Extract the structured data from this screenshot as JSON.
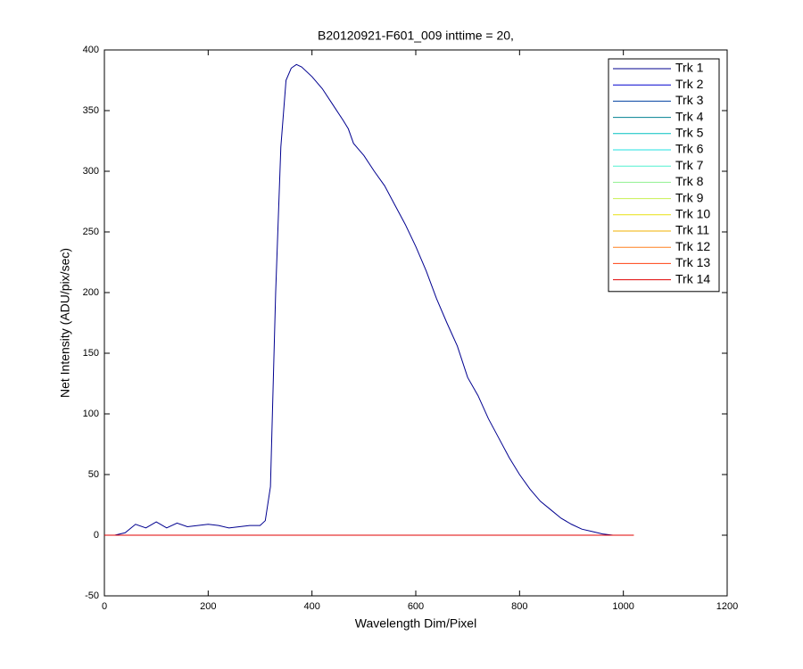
{
  "chart_data": {
    "type": "line",
    "title": "B20120921-F601_009 inttime = 20,",
    "xlabel": "Wavelength Dim/Pixel",
    "ylabel": "Net Intensity (ADU/pix/sec)",
    "xlim": [
      0,
      1200
    ],
    "xticks": [
      0,
      200,
      400,
      600,
      800,
      1000,
      1200
    ],
    "ylim": [
      -50,
      400
    ],
    "yticks": [
      -50,
      0,
      50,
      100,
      150,
      200,
      250,
      300,
      350,
      400
    ],
    "grid": false,
    "legend_position": "upper right",
    "x": [
      0,
      20,
      40,
      60,
      80,
      100,
      120,
      140,
      160,
      180,
      200,
      220,
      240,
      260,
      280,
      300,
      310,
      320,
      330,
      340,
      350,
      360,
      370,
      380,
      400,
      420,
      440,
      460,
      470,
      480,
      490,
      500,
      520,
      540,
      560,
      580,
      600,
      620,
      640,
      660,
      680,
      700,
      720,
      740,
      760,
      780,
      800,
      820,
      840,
      860,
      880,
      900,
      920,
      940,
      960,
      980,
      1000,
      1020
    ],
    "series": [
      {
        "name": "Trk 1",
        "color": "#00008f",
        "values": [
          0,
          0,
          2,
          9,
          6,
          11,
          6,
          10,
          7,
          8,
          9,
          8,
          6,
          7,
          8,
          8,
          12,
          40,
          200,
          320,
          375,
          385,
          388,
          386,
          378,
          368,
          355,
          342,
          335,
          323,
          318,
          313,
          300,
          288,
          272,
          256,
          238,
          218,
          195,
          175,
          156,
          130,
          115,
          96,
          80,
          64,
          50,
          38,
          28,
          21,
          14,
          9,
          5,
          3,
          1,
          0,
          0,
          null
        ]
      },
      {
        "name": "Trk 2",
        "color": "#0000cf",
        "values": [
          0,
          0,
          0,
          0,
          0,
          0,
          0,
          0,
          0,
          0,
          0,
          0,
          0,
          0,
          0,
          0,
          0,
          0,
          0,
          0,
          0,
          0,
          0,
          0,
          0,
          0,
          0,
          0,
          0,
          0,
          0,
          0,
          0,
          0,
          0,
          0,
          0,
          0,
          0,
          0,
          0,
          0,
          0,
          0,
          0,
          0,
          0,
          0,
          0,
          0,
          0,
          0,
          0,
          0,
          0,
          0,
          0,
          0
        ]
      },
      {
        "name": "Trk 3",
        "color": "#0040a0",
        "values": [
          0,
          0,
          0,
          0,
          0,
          0,
          0,
          0,
          0,
          0,
          0,
          0,
          0,
          0,
          0,
          0,
          0,
          0,
          0,
          0,
          0,
          0,
          0,
          0,
          0,
          0,
          0,
          0,
          0,
          0,
          0,
          0,
          0,
          0,
          0,
          0,
          0,
          0,
          0,
          0,
          0,
          0,
          0,
          0,
          0,
          0,
          0,
          0,
          0,
          0,
          0,
          0,
          0,
          0,
          0,
          0,
          0,
          0
        ]
      },
      {
        "name": "Trk 4",
        "color": "#008090",
        "values": [
          0,
          0,
          0,
          0,
          0,
          0,
          0,
          0,
          0,
          0,
          0,
          0,
          0,
          0,
          0,
          0,
          0,
          0,
          0,
          0,
          0,
          0,
          0,
          0,
          0,
          0,
          0,
          0,
          0,
          0,
          0,
          0,
          0,
          0,
          0,
          0,
          0,
          0,
          0,
          0,
          0,
          0,
          0,
          0,
          0,
          0,
          0,
          0,
          0,
          0,
          0,
          0,
          0,
          0,
          0,
          0,
          0,
          0
        ]
      },
      {
        "name": "Trk 5",
        "color": "#00c0c0",
        "values": [
          0,
          0,
          0,
          0,
          0,
          0,
          0,
          0,
          0,
          0,
          0,
          0,
          0,
          0,
          0,
          0,
          0,
          0,
          0,
          0,
          0,
          0,
          0,
          0,
          0,
          0,
          0,
          0,
          0,
          0,
          0,
          0,
          0,
          0,
          0,
          0,
          0,
          0,
          0,
          0,
          0,
          0,
          0,
          0,
          0,
          0,
          0,
          0,
          0,
          0,
          0,
          0,
          0,
          0,
          0,
          0,
          0,
          0
        ]
      },
      {
        "name": "Trk 6",
        "color": "#20e0e0",
        "values": [
          0,
          0,
          0,
          0,
          0,
          0,
          0,
          0,
          0,
          0,
          0,
          0,
          0,
          0,
          0,
          0,
          0,
          0,
          0,
          0,
          0,
          0,
          0,
          0,
          0,
          0,
          0,
          0,
          0,
          0,
          0,
          0,
          0,
          0,
          0,
          0,
          0,
          0,
          0,
          0,
          0,
          0,
          0,
          0,
          0,
          0,
          0,
          0,
          0,
          0,
          0,
          0,
          0,
          0,
          0,
          0,
          0,
          0
        ]
      },
      {
        "name": "Trk 7",
        "color": "#50f0d0",
        "values": [
          0,
          0,
          0,
          0,
          0,
          0,
          0,
          0,
          0,
          0,
          0,
          0,
          0,
          0,
          0,
          0,
          0,
          0,
          0,
          0,
          0,
          0,
          0,
          0,
          0,
          0,
          0,
          0,
          0,
          0,
          0,
          0,
          0,
          0,
          0,
          0,
          0,
          0,
          0,
          0,
          0,
          0,
          0,
          0,
          0,
          0,
          0,
          0,
          0,
          0,
          0,
          0,
          0,
          0,
          0,
          0,
          0,
          0
        ]
      },
      {
        "name": "Trk 8",
        "color": "#90f090",
        "values": [
          0,
          0,
          0,
          0,
          0,
          0,
          0,
          0,
          0,
          0,
          0,
          0,
          0,
          0,
          0,
          0,
          0,
          0,
          0,
          0,
          0,
          0,
          0,
          0,
          0,
          0,
          0,
          0,
          0,
          0,
          0,
          0,
          0,
          0,
          0,
          0,
          0,
          0,
          0,
          0,
          0,
          0,
          0,
          0,
          0,
          0,
          0,
          0,
          0,
          0,
          0,
          0,
          0,
          0,
          0,
          0,
          0,
          0
        ]
      },
      {
        "name": "Trk 9",
        "color": "#c8f050",
        "values": [
          0,
          0,
          0,
          0,
          0,
          0,
          0,
          0,
          0,
          0,
          0,
          0,
          0,
          0,
          0,
          0,
          0,
          0,
          0,
          0,
          0,
          0,
          0,
          0,
          0,
          0,
          0,
          0,
          0,
          0,
          0,
          0,
          0,
          0,
          0,
          0,
          0,
          0,
          0,
          0,
          0,
          0,
          0,
          0,
          0,
          0,
          0,
          0,
          0,
          0,
          0,
          0,
          0,
          0,
          0,
          0,
          0,
          0
        ]
      },
      {
        "name": "Trk 10",
        "color": "#e8e010",
        "values": [
          0,
          0,
          0,
          0,
          0,
          0,
          0,
          0,
          0,
          0,
          0,
          0,
          0,
          0,
          0,
          0,
          0,
          0,
          0,
          0,
          0,
          0,
          0,
          0,
          0,
          0,
          0,
          0,
          0,
          0,
          0,
          0,
          0,
          0,
          0,
          0,
          0,
          0,
          0,
          0,
          0,
          0,
          0,
          0,
          0,
          0,
          0,
          0,
          0,
          0,
          0,
          0,
          0,
          0,
          0,
          0,
          0,
          0
        ]
      },
      {
        "name": "Trk 11",
        "color": "#f0b000",
        "values": [
          0,
          0,
          0,
          0,
          0,
          0,
          0,
          0,
          0,
          0,
          0,
          0,
          0,
          0,
          0,
          0,
          0,
          0,
          0,
          0,
          0,
          0,
          0,
          0,
          0,
          0,
          0,
          0,
          0,
          0,
          0,
          0,
          0,
          0,
          0,
          0,
          0,
          0,
          0,
          0,
          0,
          0,
          0,
          0,
          0,
          0,
          0,
          0,
          0,
          0,
          0,
          0,
          0,
          0,
          0,
          0,
          0,
          0
        ]
      },
      {
        "name": "Trk 12",
        "color": "#ff8020",
        "values": [
          0,
          0,
          0,
          0,
          0,
          0,
          0,
          0,
          0,
          0,
          0,
          0,
          0,
          0,
          0,
          0,
          0,
          0,
          0,
          0,
          0,
          0,
          0,
          0,
          0,
          0,
          0,
          0,
          0,
          0,
          0,
          0,
          0,
          0,
          0,
          0,
          0,
          0,
          0,
          0,
          0,
          0,
          0,
          0,
          0,
          0,
          0,
          0,
          0,
          0,
          0,
          0,
          0,
          0,
          0,
          0,
          0,
          0
        ]
      },
      {
        "name": "Trk 13",
        "color": "#ff4010",
        "values": [
          0,
          0,
          0,
          0,
          0,
          0,
          0,
          0,
          0,
          0,
          0,
          0,
          0,
          0,
          0,
          0,
          0,
          0,
          0,
          0,
          0,
          0,
          0,
          0,
          0,
          0,
          0,
          0,
          0,
          0,
          0,
          0,
          0,
          0,
          0,
          0,
          0,
          0,
          0,
          0,
          0,
          0,
          0,
          0,
          0,
          0,
          0,
          0,
          0,
          0,
          0,
          0,
          0,
          0,
          0,
          0,
          0,
          0
        ]
      },
      {
        "name": "Trk 14",
        "color": "#e00000",
        "values": [
          0,
          0,
          0,
          0,
          0,
          0,
          0,
          0,
          0,
          0,
          0,
          0,
          0,
          0,
          0,
          0,
          0,
          0,
          0,
          0,
          0,
          0,
          0,
          0,
          0,
          0,
          0,
          0,
          0,
          0,
          0,
          0,
          0,
          0,
          0,
          0,
          0,
          0,
          0,
          0,
          0,
          0,
          0,
          0,
          0,
          0,
          0,
          0,
          0,
          0,
          0,
          0,
          0,
          0,
          0,
          0,
          0,
          0
        ]
      }
    ]
  }
}
